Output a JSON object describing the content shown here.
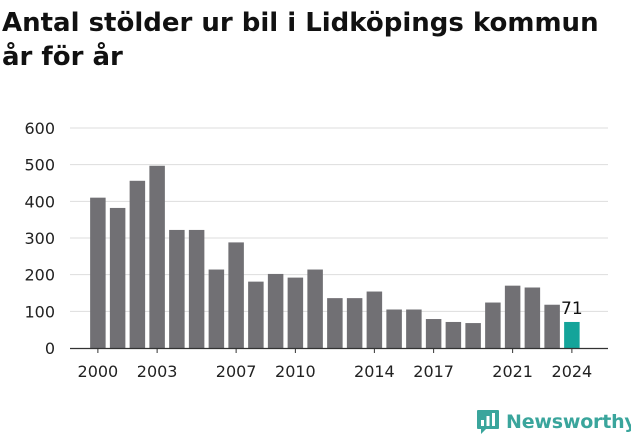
{
  "title": "Antal stölder ur bil i Lidköpings kommun år för år",
  "brand": {
    "name": "Newsworthy",
    "icon": "newsworthy-logo-icon",
    "color": "#3aa59c"
  },
  "colors": {
    "bar": "#717074",
    "highlight": "#14a49a",
    "grid": "#dddddd",
    "text": "#222222"
  },
  "chart_data": {
    "type": "bar",
    "title": "Antal stölder ur bil i Lidköpings kommun år för år",
    "xlabel": "",
    "ylabel": "",
    "ylim": [
      0,
      600
    ],
    "yticks": [
      0,
      100,
      200,
      300,
      400,
      500,
      600
    ],
    "grid": true,
    "categories": [
      "2000",
      "2001",
      "2002",
      "2003",
      "2004",
      "2005",
      "2006",
      "2007",
      "2008",
      "2009",
      "2010",
      "2011",
      "2012",
      "2013",
      "2014",
      "2015",
      "2016",
      "2017",
      "2018",
      "2019",
      "2020",
      "2021",
      "2022",
      "2023",
      "2024"
    ],
    "xtick_labels": [
      "2000",
      "2003",
      "2007",
      "2010",
      "2014",
      "2017",
      "2021",
      "2024"
    ],
    "values": [
      410,
      382,
      456,
      497,
      322,
      322,
      214,
      288,
      181,
      202,
      192,
      214,
      136,
      136,
      154,
      105,
      105,
      79,
      71,
      68,
      124,
      170,
      165,
      118,
      71
    ],
    "highlight_index": 24,
    "annotations": [
      {
        "category": "2024",
        "text": "71"
      }
    ]
  }
}
